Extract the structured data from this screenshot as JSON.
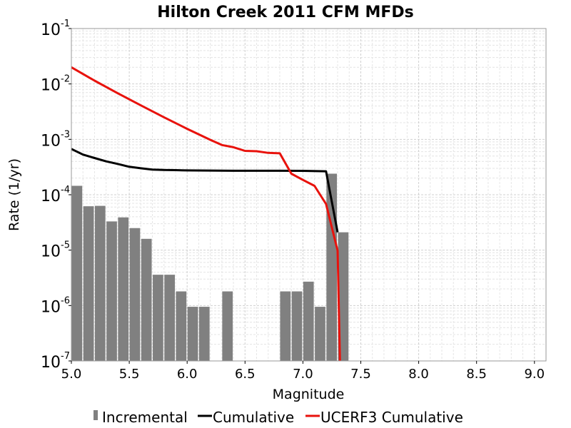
{
  "chart_data": {
    "type": "bar",
    "title": "Hilton Creek 2011 CFM MFDs",
    "xlabel": "Magnitude",
    "ylabel": "Rate (1/yr)",
    "xlim": [
      5.0,
      9.1
    ],
    "ylim": [
      1e-07,
      0.1
    ],
    "yscale": "log",
    "grid": true,
    "legend_position": "bottom",
    "x_ticks": [
      "5.0",
      "5.5",
      "6.0",
      "6.5",
      "7.0",
      "7.5",
      "8.0",
      "8.5",
      "9.0"
    ],
    "y_ticks": [
      {
        "base": "10",
        "exp": "-7"
      },
      {
        "base": "10",
        "exp": "-6"
      },
      {
        "base": "10",
        "exp": "-5"
      },
      {
        "base": "10",
        "exp": "-4"
      },
      {
        "base": "10",
        "exp": "-3"
      },
      {
        "base": "10",
        "exp": "-2"
      },
      {
        "base": "10",
        "exp": "-1"
      }
    ],
    "series": [
      {
        "name": "Incremental",
        "kind": "bar",
        "color": "#808080",
        "x": [
          5.05,
          5.15,
          5.25,
          5.35,
          5.45,
          5.55,
          5.65,
          5.75,
          5.85,
          5.95,
          6.05,
          6.15,
          6.35,
          6.85,
          6.95,
          7.05,
          7.15,
          7.25,
          7.35
        ],
        "values": [
          0.000145,
          6.2e-05,
          6.3e-05,
          3.3e-05,
          3.9e-05,
          2.5e-05,
          1.6e-05,
          3.6e-06,
          3.6e-06,
          1.8e-06,
          9.5e-07,
          9.5e-07,
          1.8e-06,
          1.8e-06,
          1.8e-06,
          2.7e-06,
          9.5e-07,
          0.00024,
          2.1e-05
        ]
      },
      {
        "name": "Cumulative",
        "kind": "line",
        "color": "#000000",
        "x": [
          5.0,
          5.1,
          5.2,
          5.3,
          5.4,
          5.5,
          5.6,
          5.7,
          5.8,
          5.9,
          6.0,
          6.1,
          6.2,
          6.4,
          6.6,
          6.8,
          7.0,
          7.2,
          7.3
        ],
        "values": [
          0.00067,
          0.00053,
          0.00046,
          0.0004,
          0.00036,
          0.00032,
          0.0003,
          0.000285,
          0.00028,
          0.000278,
          0.000275,
          0.000274,
          0.000273,
          0.000271,
          0.000271,
          0.000271,
          0.00027,
          0.000265,
          2.1e-05
        ]
      },
      {
        "name": "UCERF3 Cumulative",
        "kind": "line",
        "color": "#e8120c",
        "x": [
          5.0,
          5.2,
          5.4,
          5.6,
          5.8,
          6.0,
          6.2,
          6.3,
          6.4,
          6.5,
          6.6,
          6.7,
          6.8,
          6.9,
          7.0,
          7.1,
          7.2,
          7.3,
          7.32
        ],
        "values": [
          0.02,
          0.0115,
          0.0068,
          0.0041,
          0.0025,
          0.00155,
          0.00098,
          0.00079,
          0.00072,
          0.00062,
          0.00061,
          0.00057,
          0.00056,
          0.00024,
          0.000185,
          0.000145,
          6.8e-05,
          9.8e-06,
          1e-07
        ]
      }
    ]
  }
}
